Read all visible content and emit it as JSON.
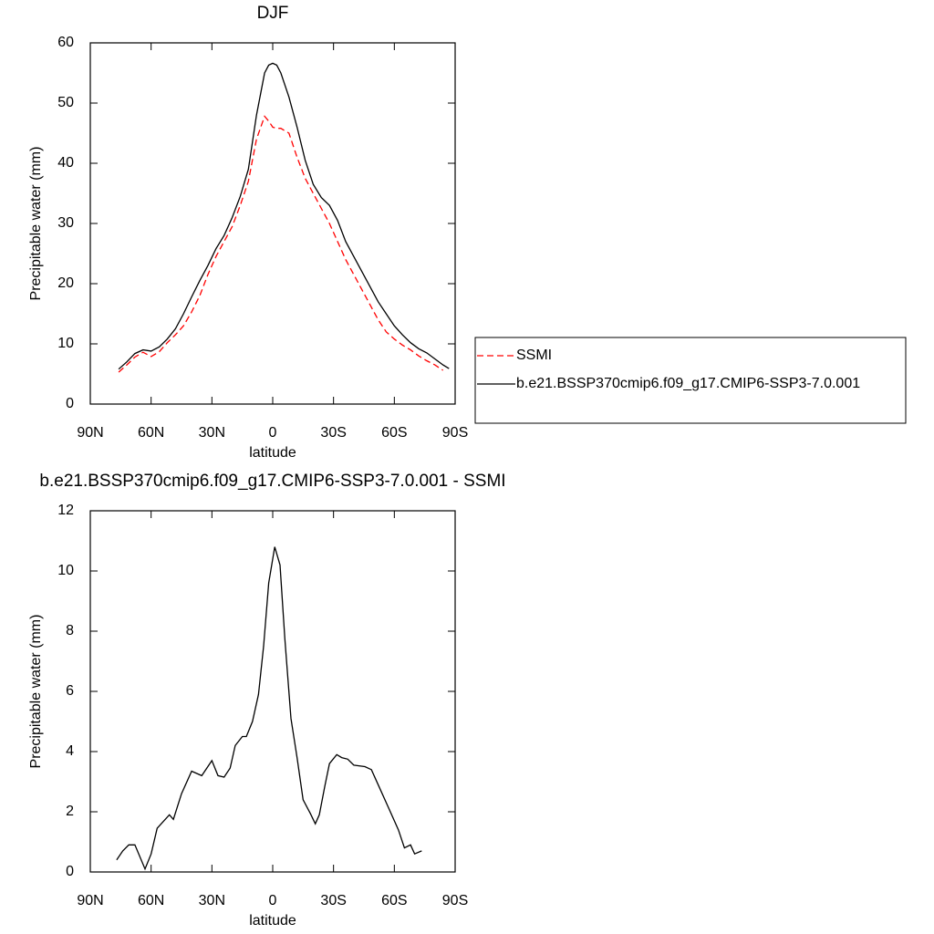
{
  "chart_data": [
    {
      "type": "line",
      "title": "DJF",
      "xlabel": "latitude",
      "ylabel": "Precipitable water (mm)",
      "xlim": [
        90,
        -90
      ],
      "ylim": [
        0,
        60
      ],
      "xticks": [
        {
          "value": 90,
          "label": "90N"
        },
        {
          "value": 60,
          "label": "60N"
        },
        {
          "value": 30,
          "label": "30N"
        },
        0,
        {
          "value": -30,
          "label": "30S"
        },
        {
          "value": -60,
          "label": "60S"
        },
        {
          "value": -90,
          "label": "90S"
        }
      ],
      "yticks": [
        0,
        10,
        20,
        30,
        40,
        50,
        60
      ],
      "legend": "right",
      "x": [
        76,
        72,
        68,
        64,
        60,
        56,
        52,
        48,
        44,
        40,
        36,
        32,
        28,
        24,
        20,
        16,
        12,
        8,
        4,
        2,
        0,
        -2,
        -4,
        -8,
        -12,
        -16,
        -20,
        -24,
        -28,
        -32,
        -36,
        -40,
        -44,
        -48,
        -52,
        -56,
        -60,
        -64,
        -68,
        -72,
        -76,
        -80,
        -84,
        -87
      ],
      "series": [
        {
          "name": "SSMI",
          "color": "#ff0000",
          "dash": "dashed",
          "values": [
            5.3,
            6.5,
            7.8,
            8.6,
            7.9,
            8.7,
            10.2,
            11.5,
            13,
            15.3,
            18,
            21.5,
            24.5,
            27,
            29.5,
            33,
            37,
            44,
            47.8,
            47,
            46,
            45.8,
            45.8,
            45,
            41,
            37.5,
            35,
            32.5,
            30,
            27,
            24,
            21.5,
            19,
            16.5,
            14,
            12,
            10.8,
            9.8,
            9,
            8,
            7.2,
            6.5,
            5.6,
            null
          ]
        },
        {
          "name": "b.e21.BSSP370cmip6.f09_g17.CMIP6-SSP3-7.0.001",
          "color": "#000000",
          "dash": "solid",
          "values": [
            5.8,
            7.0,
            8.4,
            9.0,
            8.8,
            9.5,
            10.8,
            12.5,
            15,
            17.8,
            20.5,
            23,
            25.8,
            28,
            31,
            34.5,
            39,
            48,
            55,
            56.3,
            56.6,
            56.3,
            55,
            51,
            46,
            40.5,
            36.5,
            34.3,
            33,
            30.5,
            27,
            24.5,
            22,
            19.5,
            17,
            15,
            13,
            11.5,
            10.2,
            9.2,
            8.5,
            7.5,
            6.5,
            5.9
          ]
        }
      ]
    },
    {
      "type": "line",
      "title": "b.e21.BSSP370cmip6.f09_g17.CMIP6-SSP3-7.0.001 - SSMI",
      "xlabel": "latitude",
      "ylabel": "Precipitable water (mm)",
      "xlim": [
        90,
        -90
      ],
      "ylim": [
        0,
        12
      ],
      "xticks": [
        {
          "value": 90,
          "label": "90N"
        },
        {
          "value": 60,
          "label": "60N"
        },
        {
          "value": 30,
          "label": "30N"
        },
        0,
        {
          "value": -30,
          "label": "30S"
        },
        {
          "value": -60,
          "label": "60S"
        },
        {
          "value": -90,
          "label": "90S"
        }
      ],
      "yticks": [
        0,
        2,
        4,
        6,
        8,
        10,
        12
      ],
      "x": [
        77,
        74,
        71,
        68,
        63,
        60,
        57,
        51,
        49,
        45,
        40,
        35,
        30,
        27,
        24,
        21,
        18.5,
        15,
        13,
        10,
        7,
        4.5,
        2,
        -1,
        -3.6,
        -6,
        -9,
        -12,
        -15,
        -18.5,
        -21,
        -23,
        -25.7,
        -28,
        -31.6,
        -34,
        -37,
        -40,
        -45.5,
        -48.7,
        -52,
        -57,
        -62,
        -65,
        -68,
        -70,
        -73.5
      ],
      "series": [
        {
          "color": "#000000",
          "dash": "solid",
          "values": [
            0.4,
            0.7,
            0.9,
            0.9,
            0.1,
            0.6,
            1.45,
            1.9,
            1.75,
            2.6,
            3.35,
            3.2,
            3.7,
            3.2,
            3.15,
            3.45,
            4.2,
            4.5,
            4.5,
            5.0,
            5.9,
            7.5,
            9.6,
            10.8,
            10.2,
            7.75,
            5.1,
            3.8,
            2.4,
            1.95,
            1.6,
            1.9,
            2.85,
            3.6,
            3.9,
            3.8,
            3.75,
            3.55,
            3.5,
            3.4,
            2.9,
            2.15,
            1.4,
            0.8,
            0.9,
            0.6,
            0.7
          ]
        }
      ]
    }
  ]
}
